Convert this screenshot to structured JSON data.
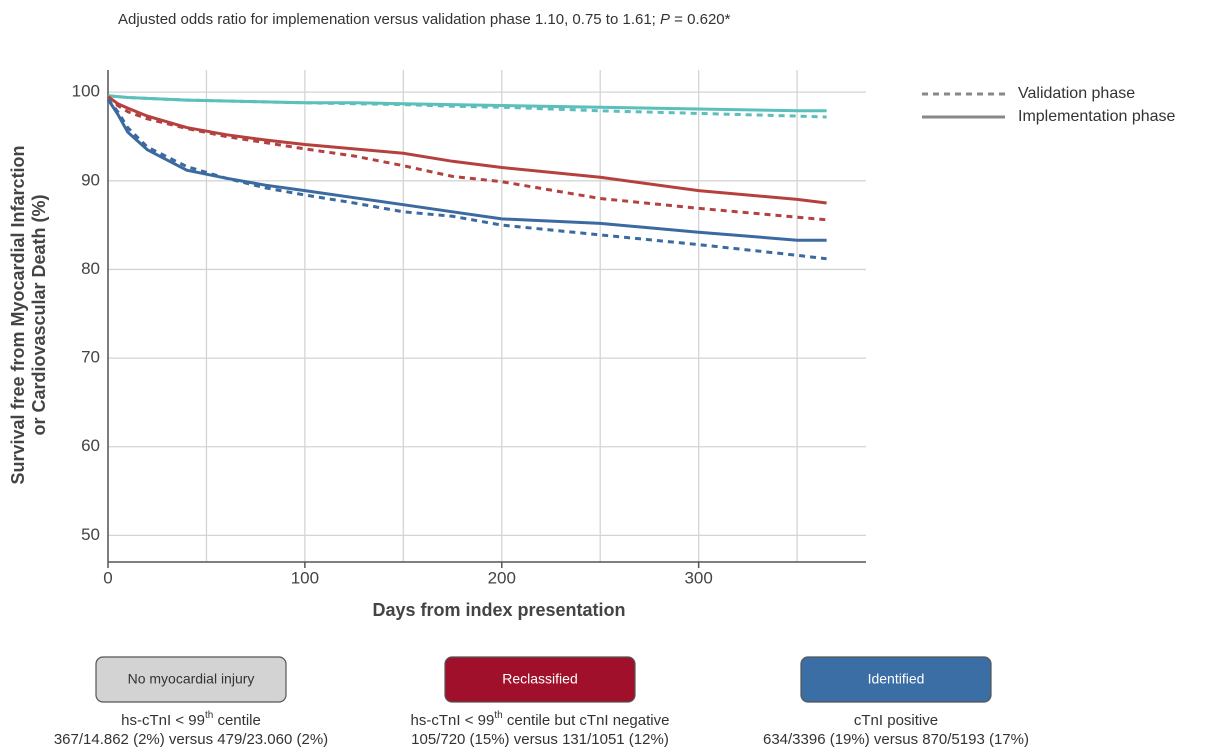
{
  "chart_data": {
    "type": "line",
    "title_parts": [
      "Adjusted odds ratio for implemenation versus validation phase 1.10, 0.75 to 1.61; ",
      "P",
      " = 0.620*"
    ],
    "ylabel_lines": [
      "Survival free from Myocardial Infarction",
      "or Cardiovascular Death (%)"
    ],
    "xlabel": "Days from index presentation",
    "xlim": [
      0,
      385
    ],
    "ylim": [
      47,
      102.5
    ],
    "xticks": [
      0,
      100,
      200,
      300
    ],
    "xgrid": [
      0,
      50,
      100,
      150,
      200,
      250,
      300,
      350
    ],
    "yticks": [
      50,
      60,
      70,
      80,
      90,
      100
    ],
    "grid": true,
    "legend_position": "upper right",
    "legend": [
      {
        "name": "Validation phase",
        "dashed": true
      },
      {
        "name": "Implementation phase",
        "dashed": false
      }
    ],
    "x": [
      0,
      5,
      10,
      20,
      40,
      60,
      80,
      100,
      125,
      150,
      175,
      200,
      250,
      300,
      350,
      365
    ],
    "groups": [
      {
        "label": "No myocardial injury",
        "line_color": "#5bbfbb",
        "box_color": "#d3d3d3",
        "box_text_color": "#333333",
        "criterion": {
          "pre": "hs-cTnI < 99",
          "sup": "th",
          "post": " centile"
        },
        "stats": "367/14.862 (2%) versus 479/23.060 (2%)",
        "lines": [
          [
            99.6,
            99.5,
            99.4,
            99.3,
            99.1,
            99.0,
            98.9,
            98.8,
            98.7,
            98.6,
            98.4,
            98.3,
            97.9,
            97.6,
            97.3,
            97.2
          ],
          [
            99.6,
            99.5,
            99.4,
            99.3,
            99.1,
            99.0,
            98.9,
            98.8,
            98.8,
            98.7,
            98.6,
            98.5,
            98.3,
            98.1,
            97.9,
            97.9
          ]
        ]
      },
      {
        "label": "Reclassified",
        "line_color": "#b5413f",
        "box_color": "#a0102a",
        "box_text_color": "#ffffff",
        "criterion": {
          "pre": "hs-cTnI < 99",
          "sup": "th",
          "post": " centile but cTnI negative"
        },
        "stats": "105/720 (15%) versus 131/1051 (12%)",
        "lines": [
          [
            99.5,
            98.5,
            97.8,
            97.0,
            95.9,
            95.0,
            94.3,
            93.6,
            92.8,
            91.7,
            90.5,
            89.9,
            88.0,
            86.9,
            85.9,
            85.6
          ],
          [
            99.5,
            98.7,
            98.2,
            97.3,
            96.0,
            95.2,
            94.6,
            94.1,
            93.6,
            93.1,
            92.2,
            91.5,
            90.4,
            88.9,
            87.9,
            87.5
          ]
        ]
      },
      {
        "label": "Identified",
        "line_color": "#3b6aa0",
        "box_color": "#3a6ea5",
        "box_text_color": "#ffffff",
        "criterion": {
          "pre": "cTnI positive",
          "sup": "",
          "post": ""
        },
        "stats": "634/3396 (19%) versus 870/5193 (17%)",
        "lines": [
          [
            99.2,
            97.8,
            96.0,
            93.8,
            91.6,
            90.3,
            89.2,
            88.4,
            87.5,
            86.5,
            86.0,
            85.0,
            83.9,
            82.8,
            81.6,
            81.2
          ],
          [
            99.2,
            97.5,
            95.5,
            93.5,
            91.2,
            90.3,
            89.5,
            88.9,
            88.1,
            87.3,
            86.5,
            85.7,
            85.2,
            84.2,
            83.3,
            83.3
          ]
        ]
      }
    ]
  }
}
